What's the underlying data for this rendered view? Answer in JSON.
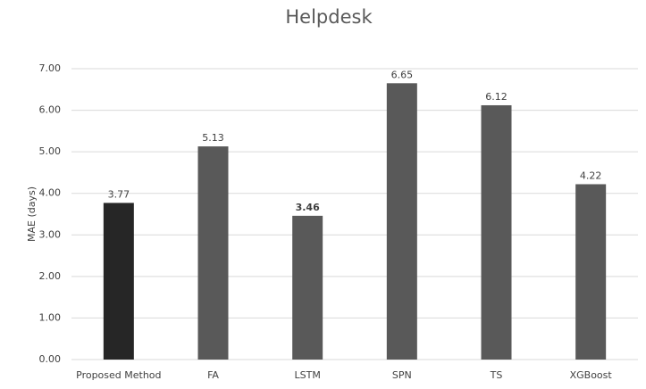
{
  "chart_data": {
    "type": "bar",
    "title": "Helpdesk",
    "y_label": "MAE (days)",
    "categories": [
      "Proposed Method",
      "FA",
      "LSTM",
      "SPN",
      "TS",
      "XGBoost"
    ],
    "values": [
      3.77,
      5.13,
      3.46,
      6.65,
      6.12,
      4.22
    ],
    "colors": [
      "#262626",
      "#595959",
      "#595959",
      "#595959",
      "#595959",
      "#595959"
    ],
    "value_label_weights": [
      "normal",
      "normal",
      "bold",
      "normal",
      "normal",
      "normal"
    ],
    "ylim": [
      0,
      7
    ],
    "yticks": [
      {
        "value": 0,
        "label": "0.00"
      },
      {
        "value": 1,
        "label": "1.00"
      },
      {
        "value": 2,
        "label": "2.00"
      },
      {
        "value": 3,
        "label": "3.00"
      },
      {
        "value": 4,
        "label": "4.00"
      },
      {
        "value": 5,
        "label": "5.00"
      },
      {
        "value": 6,
        "label": "6.00"
      },
      {
        "value": 7,
        "label": "7.00"
      }
    ],
    "grid": true
  }
}
